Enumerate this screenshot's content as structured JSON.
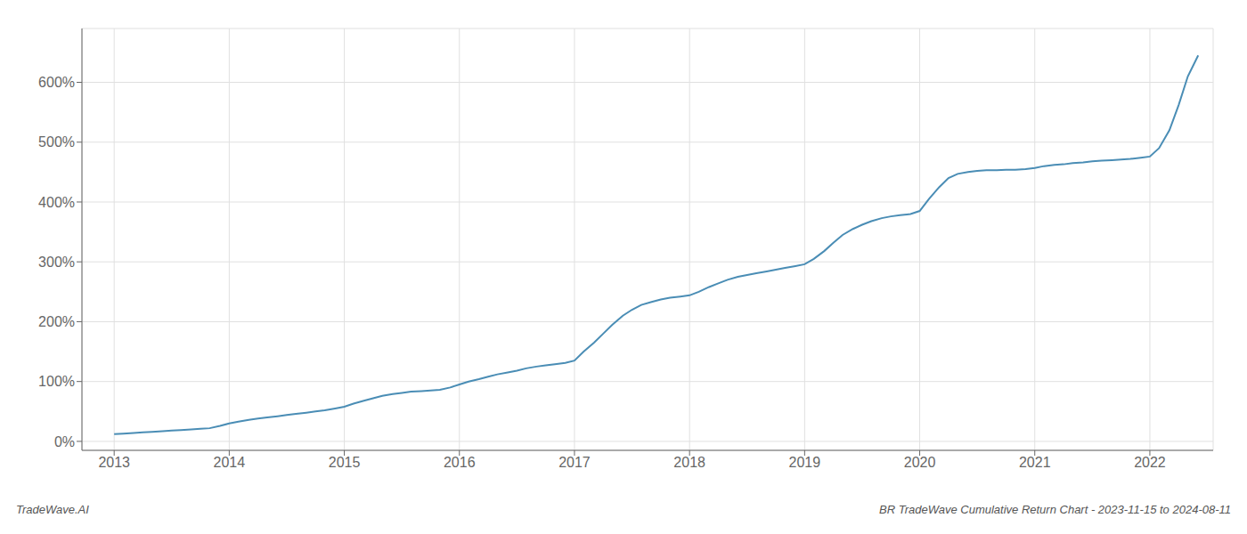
{
  "chart_data": {
    "type": "line",
    "title": "BR TradeWave Cumulative Return Chart - 2023-11-15 to 2024-08-11",
    "annotations": [
      "TradeWave.AI"
    ],
    "x": [
      2013.0,
      2013.08,
      2013.17,
      2013.25,
      2013.33,
      2013.42,
      2013.5,
      2013.58,
      2013.67,
      2013.75,
      2013.83,
      2013.92,
      2014.0,
      2014.08,
      2014.17,
      2014.25,
      2014.33,
      2014.42,
      2014.5,
      2014.58,
      2014.67,
      2014.75,
      2014.83,
      2014.92,
      2015.0,
      2015.08,
      2015.17,
      2015.25,
      2015.33,
      2015.42,
      2015.5,
      2015.58,
      2015.67,
      2015.75,
      2015.83,
      2015.92,
      2016.0,
      2016.08,
      2016.17,
      2016.25,
      2016.33,
      2016.42,
      2016.5,
      2016.58,
      2016.67,
      2016.75,
      2016.83,
      2016.92,
      2017.0,
      2017.08,
      2017.17,
      2017.25,
      2017.33,
      2017.42,
      2017.5,
      2017.58,
      2017.67,
      2017.75,
      2017.83,
      2017.92,
      2018.0,
      2018.08,
      2018.17,
      2018.25,
      2018.33,
      2018.42,
      2018.5,
      2018.58,
      2018.67,
      2018.75,
      2018.83,
      2018.92,
      2019.0,
      2019.08,
      2019.17,
      2019.25,
      2019.33,
      2019.42,
      2019.5,
      2019.58,
      2019.67,
      2019.75,
      2019.83,
      2019.92,
      2020.0,
      2020.08,
      2020.17,
      2020.25,
      2020.33,
      2020.42,
      2020.5,
      2020.58,
      2020.67,
      2020.75,
      2020.83,
      2020.92,
      2021.0,
      2021.08,
      2021.17,
      2021.25,
      2021.33,
      2021.42,
      2021.5,
      2021.58,
      2021.67,
      2021.75,
      2021.83,
      2021.92,
      2022.0,
      2022.08,
      2022.17,
      2022.25,
      2022.33,
      2022.42
    ],
    "values": [
      12,
      13,
      14,
      15,
      16,
      17,
      18,
      19,
      20,
      21,
      22,
      26,
      30,
      33,
      36,
      38,
      40,
      42,
      44,
      46,
      48,
      50,
      52,
      55,
      58,
      63,
      68,
      72,
      76,
      79,
      81,
      83,
      84,
      85,
      86,
      90,
      95,
      100,
      104,
      108,
      112,
      115,
      118,
      122,
      125,
      127,
      129,
      131,
      135,
      150,
      165,
      180,
      195,
      210,
      220,
      228,
      233,
      237,
      240,
      242,
      244,
      250,
      258,
      264,
      270,
      275,
      278,
      281,
      284,
      287,
      290,
      293,
      296,
      305,
      318,
      332,
      345,
      355,
      362,
      368,
      373,
      376,
      378,
      380,
      385,
      405,
      425,
      440,
      447,
      450,
      452,
      453,
      453,
      454,
      454,
      455,
      457,
      460,
      462,
      463,
      465,
      466,
      468,
      469,
      470,
      471,
      472,
      474,
      476,
      490,
      520,
      562,
      610,
      645
    ],
    "color": "#4a8db5",
    "xlim": [
      2012.72,
      2022.55
    ],
    "xticks": [
      2013,
      2014,
      2015,
      2016,
      2017,
      2018,
      2019,
      2020,
      2021,
      2022
    ],
    "ylim": [
      -15,
      690
    ],
    "yticks": [
      {
        "value": 0,
        "label": "0%"
      },
      {
        "value": 100,
        "label": "100%"
      },
      {
        "value": 200,
        "label": "200%"
      },
      {
        "value": 300,
        "label": "300%"
      },
      {
        "value": 400,
        "label": "400%"
      },
      {
        "value": 500,
        "label": "500%"
      },
      {
        "value": 600,
        "label": "600%"
      }
    ],
    "grid": true
  }
}
